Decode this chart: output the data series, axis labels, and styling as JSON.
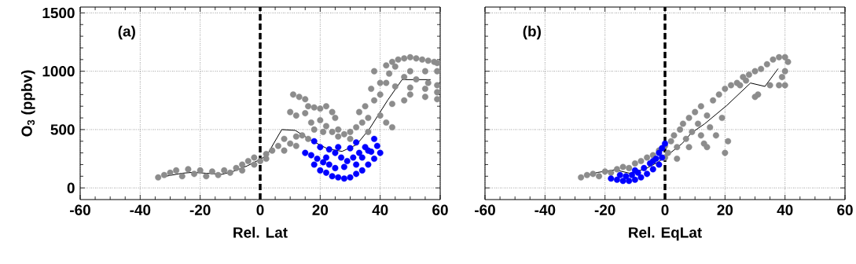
{
  "chart_data": [
    {
      "type": "scatter",
      "xlabel": "Rel. Lat",
      "ylabel": "O$_{3}$ (ppbv)",
      "annotations": [
        "(a)"
      ],
      "xlim": [
        -60,
        60
      ],
      "ylim": [
        -100,
        1550
      ],
      "xticks": [
        -60,
        -40,
        -20,
        0,
        20,
        40,
        60
      ],
      "yticks": [
        0,
        500,
        1000,
        1500
      ],
      "grid": true,
      "marker": "circle",
      "ref_lines": [
        {
          "axis": "x",
          "value": 0,
          "line_style": "dashed",
          "color": "#000000"
        }
      ],
      "series": [
        {
          "color": "#8c8c8c",
          "x": [
            -34,
            -32,
            -30,
            -28,
            -26,
            -24,
            -22,
            -20,
            -18,
            -16,
            -14,
            -12,
            -10,
            -8,
            -6,
            -4,
            -2,
            -6,
            -2,
            0,
            2,
            4,
            2,
            6,
            8,
            10,
            12,
            14,
            16,
            8,
            12,
            11,
            13,
            15,
            16,
            10,
            12,
            15,
            18,
            20,
            22,
            24,
            25,
            20,
            17,
            22,
            26,
            28,
            30,
            32,
            34,
            36,
            35,
            33,
            38,
            37,
            40,
            38,
            42,
            44,
            46,
            48,
            50,
            52,
            54,
            56,
            58,
            59,
            45,
            50,
            55,
            59,
            48,
            52,
            56,
            59,
            45,
            50,
            55,
            59,
            50,
            55,
            59,
            44,
            48,
            40,
            42,
            44,
            36,
            30,
            26,
            24,
            21,
            18,
            40,
            42,
            43
          ],
          "values": [
            90,
            110,
            130,
            150,
            100,
            160,
            120,
            150,
            100,
            140,
            110,
            150,
            130,
            170,
            200,
            230,
            260,
            150,
            200,
            230,
            290,
            320,
            250,
            360,
            420,
            380,
            440,
            450,
            420,
            320,
            360,
            800,
            780,
            760,
            700,
            650,
            620,
            640,
            690,
            680,
            700,
            650,
            600,
            580,
            560,
            530,
            500,
            460,
            480,
            520,
            560,
            600,
            700,
            650,
            750,
            850,
            900,
            1000,
            1050,
            1080,
            1100,
            1110,
            1120,
            1110,
            1100,
            1090,
            1080,
            1070,
            1040,
            1000,
            1000,
            1000,
            950,
            930,
            900,
            880,
            870,
            860,
            850,
            820,
            800,
            780,
            760,
            720,
            750,
            620,
            560,
            520,
            480,
            420,
            440,
            480,
            480,
            500,
            800,
            900,
            980
          ]
        },
        {
          "color": "#0000ff",
          "x": [
            18,
            20,
            15,
            17,
            19,
            21,
            23,
            20,
            22,
            24,
            26,
            28,
            30,
            32,
            34,
            36,
            38,
            40,
            39,
            37,
            35,
            33,
            31,
            29,
            27,
            25,
            23,
            26,
            30,
            28,
            32,
            25,
            34,
            36,
            32,
            38,
            22,
            18
          ],
          "values": [
            400,
            350,
            300,
            280,
            250,
            220,
            200,
            150,
            130,
            100,
            90,
            80,
            90,
            120,
            150,
            200,
            250,
            300,
            360,
            310,
            350,
            300,
            260,
            230,
            260,
            300,
            330,
            350,
            340,
            180,
            200,
            170,
            260,
            320,
            390,
            420,
            260,
            200
          ]
        },
        {
          "type": "line",
          "color": "#000000",
          "marker": "none",
          "x": [
            -32.5,
            -26,
            -22.5,
            -12.6,
            -8.7,
            -4.3,
            0,
            2.2,
            7.2,
            11.7,
            17.3,
            22.5,
            27.3,
            32.1,
            36.4,
            42.5,
            47.3,
            56.8
          ],
          "values": [
            95,
            126,
            133,
            117,
            144,
            189,
            245,
            279,
            500,
            493,
            403,
            335,
            313,
            370,
            505,
            752,
            928,
            928
          ]
        }
      ]
    },
    {
      "type": "scatter",
      "xlabel": "Rel. EqLat",
      "annotations": [
        "(b)"
      ],
      "xlim": [
        -60,
        60
      ],
      "ylim": [
        -100,
        1550
      ],
      "xticks": [
        -60,
        -40,
        -20,
        0,
        20,
        40,
        60
      ],
      "yticks": [
        0,
        500,
        1000,
        1500
      ],
      "tick_labels": "x",
      "grid": true,
      "marker": "circle",
      "ref_lines": [
        {
          "axis": "x",
          "value": 0,
          "line_style": "dashed",
          "color": "#000000"
        }
      ],
      "series": [
        {
          "color": "#8c8c8c",
          "x": [
            -28,
            -26,
            -24,
            -22,
            -20,
            -18,
            -16,
            -14,
            -12,
            -10,
            -8,
            -6,
            -4,
            -2,
            0,
            0,
            1,
            2,
            3,
            4,
            5,
            6,
            7,
            8,
            9,
            10,
            11,
            12,
            13,
            14,
            15,
            16,
            17,
            18,
            19,
            20,
            21,
            22,
            20,
            24,
            26,
            28,
            30,
            32,
            34,
            36,
            38,
            40,
            41,
            40,
            39,
            35,
            38,
            40,
            31,
            30,
            12,
            14,
            8,
            4,
            25,
            27
          ],
          "values": [
            90,
            110,
            120,
            100,
            140,
            130,
            160,
            180,
            170,
            210,
            230,
            260,
            280,
            320,
            260,
            360,
            300,
            400,
            450,
            350,
            500,
            550,
            420,
            600,
            480,
            650,
            550,
            700,
            380,
            620,
            520,
            750,
            450,
            800,
            600,
            850,
            400,
            880,
            300,
            900,
            950,
            970,
            1000,
            1020,
            1060,
            1100,
            1120,
            1120,
            1080,
            1000,
            950,
            880,
            880,
            880,
            800,
            780,
            450,
            350,
            350,
            250,
            880,
            920
          ]
        },
        {
          "color": "#0000ff",
          "x": [
            -18,
            -16,
            -14,
            -12,
            -10,
            -8,
            -6,
            -4,
            -2,
            -1,
            -2,
            -3,
            -5,
            -7,
            -9,
            -11,
            -13,
            -15,
            0,
            -1,
            -4,
            -10
          ],
          "values": [
            80,
            70,
            60,
            60,
            70,
            90,
            120,
            160,
            200,
            260,
            300,
            250,
            210,
            170,
            130,
            110,
            100,
            110,
            380,
            340,
            230,
            150
          ]
        },
        {
          "type": "line",
          "color": "#000000",
          "marker": "none",
          "x": [
            -26.8,
            -22.4,
            -16.7,
            -11.8,
            -6.6,
            -2.2,
            1.3,
            5.7,
            8.8,
            13.2,
            20.6,
            28.5,
            33.3,
            37.7
          ],
          "values": [
            103,
            133,
            155,
            126,
            162,
            223,
            290,
            380,
            471,
            549,
            707,
            899,
            870,
            1022
          ]
        }
      ]
    }
  ]
}
